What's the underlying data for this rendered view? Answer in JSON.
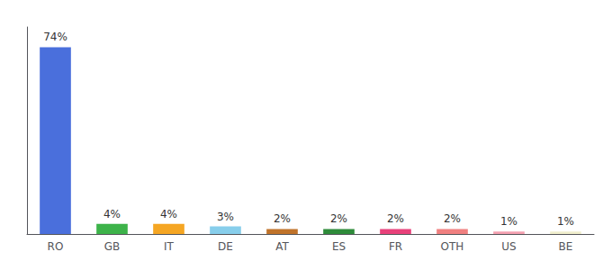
{
  "chart_data": {
    "type": "bar",
    "categories": [
      "RO",
      "GB",
      "IT",
      "DE",
      "AT",
      "ES",
      "FR",
      "OTH",
      "US",
      "BE"
    ],
    "values": [
      74,
      4,
      4,
      3,
      2,
      2,
      2,
      2,
      1,
      1
    ],
    "value_labels": [
      "74%",
      "4%",
      "4%",
      "3%",
      "2%",
      "2%",
      "2%",
      "2%",
      "1%",
      "1%"
    ],
    "colors": [
      "#4a6fdc",
      "#3db34a",
      "#f5a623",
      "#87ceeb",
      "#c0732a",
      "#2e8b3a",
      "#e8417a",
      "#f08080",
      "#f4a0b0",
      "#f0eecc"
    ],
    "ylim": [
      0,
      82
    ],
    "grid": false,
    "data_labels": true,
    "tick_labels": "x"
  }
}
